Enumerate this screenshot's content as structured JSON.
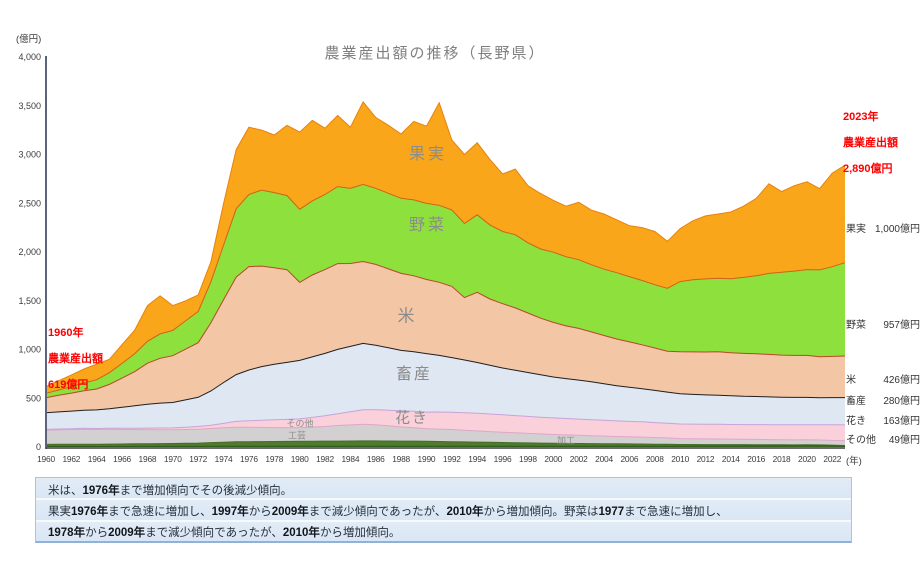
{
  "chart_data": {
    "type": "area",
    "stacked": true,
    "title": "農業産出額の推移（長野県）",
    "y_axis_unit": "(億円)",
    "x_axis_unit": "(年)",
    "ylim": [
      0,
      4000
    ],
    "grid": false,
    "legend_position": "right-inline",
    "y_ticks": [
      {
        "v": 0,
        "label": "0"
      },
      {
        "v": 500,
        "label": "500"
      },
      {
        "v": 1000,
        "label": "1,000"
      },
      {
        "v": 1500,
        "label": "1,500"
      },
      {
        "v": 2000,
        "label": "2,000"
      },
      {
        "v": 2500,
        "label": "2,500"
      },
      {
        "v": 3000,
        "label": "3,000"
      },
      {
        "v": 3500,
        "label": "3,500"
      },
      {
        "v": 4000,
        "label": "4,000"
      }
    ],
    "x_tick_years": [
      "1960",
      "1962",
      "1964",
      "1966",
      "1968",
      "1970",
      "1972",
      "1974",
      "1976",
      "1978",
      "1980",
      "1982",
      "1984",
      "1986",
      "1988",
      "1990",
      "1992",
      "1994",
      "1996",
      "1998",
      "2000",
      "2002",
      "2004",
      "2006",
      "2008",
      "2010",
      "2012",
      "2014",
      "2016",
      "2018",
      "2020",
      "2022"
    ],
    "years": [
      1960,
      1961,
      1962,
      1963,
      1964,
      1965,
      1966,
      1967,
      1968,
      1969,
      1970,
      1971,
      1972,
      1973,
      1974,
      1975,
      1976,
      1977,
      1978,
      1979,
      1980,
      1981,
      1982,
      1983,
      1984,
      1985,
      1986,
      1987,
      1988,
      1989,
      1990,
      1991,
      1992,
      1993,
      1994,
      1995,
      1996,
      1997,
      1998,
      1999,
      2000,
      2001,
      2002,
      2003,
      2004,
      2005,
      2006,
      2007,
      2008,
      2009,
      2010,
      2011,
      2012,
      2013,
      2014,
      2015,
      2016,
      2017,
      2018,
      2019,
      2020,
      2021,
      2022,
      2023
    ],
    "series": [
      {
        "name": "加工",
        "color": "#3e6b24",
        "stroke": "#2f5a1b",
        "values": [
          5,
          5,
          5,
          5,
          5,
          5,
          5,
          6,
          6,
          6,
          6,
          6,
          6,
          7,
          7,
          8,
          8,
          8,
          8,
          8,
          8,
          8,
          8,
          8,
          8,
          8,
          8,
          8,
          8,
          8,
          8,
          8,
          8,
          8,
          8,
          8,
          8,
          8,
          8,
          8,
          8,
          8,
          8,
          8,
          8,
          8,
          8,
          8,
          8,
          8,
          8,
          9,
          9,
          9,
          10,
          10,
          10,
          10,
          11,
          11,
          12,
          12,
          11,
          10
        ]
      },
      {
        "name": "工芸",
        "color": "#4f7b2e",
        "stroke": "#456e26",
        "values": [
          22,
          23,
          23,
          24,
          24,
          25,
          26,
          27,
          28,
          29,
          30,
          32,
          34,
          38,
          42,
          45,
          46,
          47,
          48,
          49,
          50,
          51,
          52,
          53,
          54,
          55,
          55,
          54,
          53,
          52,
          50,
          48,
          46,
          44,
          42,
          40,
          38,
          36,
          34,
          32,
          30,
          29,
          28,
          27,
          26,
          25,
          24,
          23,
          21,
          20,
          18,
          17,
          16,
          16,
          15,
          15,
          14,
          13,
          12,
          11,
          12,
          10,
          8,
          5
        ]
      },
      {
        "name": "その他",
        "color": "#d2d0d0",
        "stroke": "#dda8c8",
        "values": [
          145,
          147,
          150,
          152,
          150,
          150,
          148,
          146,
          144,
          142,
          140,
          141,
          142,
          145,
          148,
          150,
          148,
          146,
          143,
          141,
          140,
          145,
          150,
          160,
          165,
          170,
          165,
          155,
          145,
          138,
          130,
          128,
          125,
          120,
          115,
          110,
          106,
          102,
          98,
          94,
          90,
          87,
          84,
          81,
          78,
          75,
          73,
          71,
          68,
          65,
          60,
          59,
          58,
          57,
          56,
          55,
          54,
          53,
          52,
          51,
          50,
          50,
          49,
          49
        ]
      },
      {
        "name": "花き",
        "color": "#fad1da",
        "stroke": "#c9a3d9",
        "values": [
          9,
          10,
          10,
          11,
          11,
          12,
          13,
          14,
          16,
          18,
          20,
          24,
          28,
          34,
          45,
          60,
          68,
          74,
          80,
          85,
          90,
          100,
          110,
          120,
          135,
          150,
          155,
          160,
          165,
          168,
          170,
          175,
          178,
          180,
          182,
          180,
          178,
          176,
          174,
          172,
          170,
          168,
          166,
          164,
          162,
          160,
          158,
          156,
          153,
          150,
          150,
          150,
          151,
          151,
          150,
          150,
          152,
          153,
          154,
          155,
          155,
          156,
          160,
          163
        ]
      },
      {
        "name": "畜産",
        "color": "#dee7f2",
        "stroke": "#1f1f1f",
        "values": [
          170,
          175,
          180,
          185,
          190,
          200,
          215,
          230,
          245,
          255,
          260,
          280,
          300,
          350,
          420,
          480,
          520,
          550,
          570,
          585,
          600,
          620,
          640,
          660,
          670,
          680,
          660,
          640,
          620,
          610,
          600,
          580,
          560,
          540,
          520,
          500,
          480,
          465,
          450,
          435,
          420,
          410,
          400,
          390,
          375,
          360,
          350,
          340,
          330,
          320,
          310,
          305,
          300,
          298,
          295,
          290,
          288,
          285,
          282,
          281,
          280,
          278,
          279,
          280
        ]
      },
      {
        "name": "米",
        "color": "#f3c6a5",
        "stroke": "#b5492a",
        "values": [
          155,
          170,
          185,
          200,
          215,
          250,
          300,
          350,
          420,
          460,
          480,
          520,
          560,
          700,
          850,
          1000,
          1060,
          1030,
          990,
          950,
          800,
          840,
          860,
          880,
          850,
          840,
          830,
          810,
          790,
          780,
          760,
          750,
          730,
          640,
          720,
          680,
          660,
          640,
          610,
          580,
          560,
          540,
          530,
          510,
          495,
          480,
          465,
          450,
          435,
          420,
          430,
          435,
          440,
          445,
          440,
          440,
          438,
          436,
          432,
          430,
          430,
          420,
          422,
          426
        ]
      },
      {
        "name": "野菜",
        "color": "#8ee03c",
        "stroke": "#d2601a",
        "values": [
          45,
          55,
          65,
          80,
          95,
          120,
          150,
          185,
          225,
          250,
          260,
          290,
          320,
          420,
          560,
          700,
          740,
          780,
          770,
          760,
          750,
          760,
          770,
          790,
          770,
          790,
          780,
          775,
          770,
          778,
          780,
          790,
          785,
          760,
          795,
          760,
          740,
          750,
          720,
          710,
          720,
          710,
          705,
          690,
          680,
          680,
          670,
          660,
          650,
          645,
          720,
          740,
          750,
          755,
          760,
          780,
          800,
          830,
          850,
          865,
          880,
          890,
          920,
          957
        ]
      },
      {
        "name": "果実",
        "color": "#f9a61a",
        "stroke": "#e8820c",
        "values": [
          68,
          95,
          122,
          143,
          160,
          138,
          193,
          242,
          366,
          390,
          254,
          207,
          170,
          206,
          428,
          607,
          690,
          615,
          591,
          722,
          792,
          826,
          680,
          729,
          628,
          847,
          727,
          698,
          659,
          806,
          792,
          1051,
          718,
          708,
          738,
          672,
          590,
          673,
          586,
          569,
          532,
          518,
          589,
          560,
          566,
          542,
          522,
          542,
          545,
          482,
          544,
          605,
          646,
          659,
          684,
          730,
          794,
          920,
          827,
          876,
          901,
          834,
          960,
          1000
        ]
      }
    ]
  },
  "annotation_1960": {
    "line1": "1960年",
    "line2": "農業産出額",
    "line3": "619億円"
  },
  "annotation_2023": {
    "line1": "2023年",
    "line2": "農業産出額",
    "line3": "2,890億円"
  },
  "legend": [
    {
      "name": "果実",
      "value": "1,000億円"
    },
    {
      "name": "野菜",
      "value": "957億円"
    },
    {
      "name": "米",
      "value": "426億円"
    },
    {
      "name": "畜産",
      "value": "280億円"
    },
    {
      "name": "花き",
      "value": "163億円"
    },
    {
      "name": "その他",
      "value": "49億円"
    }
  ],
  "summary_box": {
    "lines": [
      [
        {
          "t": "米は、",
          "b": 0
        },
        {
          "t": "1976年",
          "b": 1
        },
        {
          "t": "まで増加傾向でその後減少傾向。",
          "b": 0
        }
      ],
      [
        {
          "t": "果実",
          "b": 0
        },
        {
          "t": "1976年",
          "b": 1
        },
        {
          "t": "まで急速に増加し、",
          "b": 0
        },
        {
          "t": "1997年",
          "b": 1
        },
        {
          "t": "から",
          "b": 0
        },
        {
          "t": "2009年",
          "b": 1
        },
        {
          "t": "まで減少傾向であったが、",
          "b": 0
        },
        {
          "t": "2010年",
          "b": 1
        },
        {
          "t": "から増加傾向。野菜は",
          "b": 0
        },
        {
          "t": "1977",
          "b": 1
        },
        {
          "t": "まで急速に増加し、",
          "b": 0
        }
      ],
      [
        {
          "t": "1978年",
          "b": 1
        },
        {
          "t": "から",
          "b": 0
        },
        {
          "t": "2009年",
          "b": 1
        },
        {
          "t": "まで減少傾向であったが、",
          "b": 0
        },
        {
          "t": "2010年",
          "b": 1
        },
        {
          "t": "から増加傾向。",
          "b": 0
        }
      ]
    ]
  }
}
